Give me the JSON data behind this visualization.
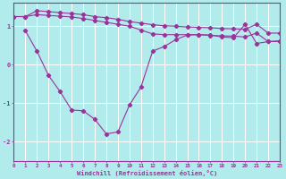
{
  "xlabel": "Windchill (Refroidissement éolien,°C)",
  "background_color": "#b2ebeb",
  "grid_color": "#ffffff",
  "line_color": "#993399",
  "x": [
    0,
    1,
    2,
    3,
    4,
    5,
    6,
    7,
    8,
    9,
    10,
    11,
    12,
    13,
    14,
    15,
    16,
    17,
    18,
    19,
    20,
    21,
    22,
    23
  ],
  "line1": [
    1.25,
    1.25,
    1.4,
    1.38,
    1.35,
    1.33,
    1.3,
    1.25,
    1.22,
    1.18,
    1.12,
    1.08,
    1.04,
    1.01,
    1.0,
    0.98,
    0.97,
    0.96,
    0.94,
    0.93,
    0.92,
    1.05,
    0.82,
    0.82
  ],
  "line2": [
    1.25,
    1.25,
    1.3,
    1.28,
    1.26,
    1.24,
    1.2,
    1.15,
    1.1,
    1.05,
    1.0,
    0.9,
    0.8,
    0.78,
    0.78,
    0.78,
    0.78,
    0.76,
    0.75,
    0.74,
    0.72,
    0.82,
    0.6,
    0.62
  ],
  "line3": [
    1.25,
    0.88,
    0.35,
    -0.28,
    -0.7,
    -1.18,
    -1.2,
    -1.42,
    -1.8,
    -1.75,
    -1.05,
    -0.58,
    0.35,
    0.47,
    0.65,
    0.77,
    0.78,
    0.77,
    0.72,
    0.7,
    1.05,
    0.55,
    0.6,
    0.6
  ],
  "ylim": [
    -2.5,
    1.6
  ],
  "xlim": [
    0,
    23
  ],
  "yticks": [
    -2,
    -1,
    0,
    1
  ],
  "xticks": [
    0,
    1,
    2,
    3,
    4,
    5,
    6,
    7,
    8,
    9,
    10,
    11,
    12,
    13,
    14,
    15,
    16,
    17,
    18,
    19,
    20,
    21,
    22,
    23
  ],
  "figwidth": 3.2,
  "figheight": 2.0,
  "dpi": 100
}
